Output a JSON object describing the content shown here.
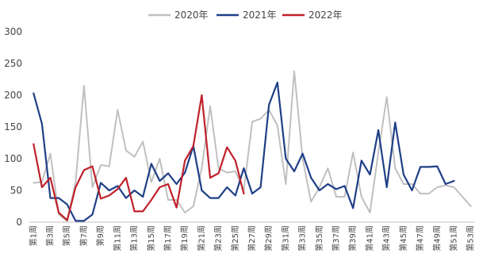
{
  "chart_data": {
    "type": "line",
    "categories": [
      "第1周",
      "第2周",
      "第3周",
      "第4周",
      "第5周",
      "第6周",
      "第7周",
      "第8周",
      "第9周",
      "第10周",
      "第11周",
      "第12周",
      "第13周",
      "第14周",
      "第15周",
      "第16周",
      "第17周",
      "第18周",
      "第19周",
      "第20周",
      "第21周",
      "第22周",
      "第23周",
      "第24周",
      "第25周",
      "第26周",
      "第27周",
      "第28周",
      "第29周",
      "第30周",
      "第31周",
      "第32周",
      "第33周",
      "第34周",
      "第35周",
      "第36周",
      "第37周",
      "第38周",
      "第39周",
      "第40周",
      "第41周",
      "第42周",
      "第43周",
      "第44周",
      "第45周",
      "第46周",
      "第47周",
      "第48周",
      "第49周",
      "第50周",
      "第51周",
      "第52周",
      "第53周"
    ],
    "tick_every": 2,
    "ylim": [
      0,
      300
    ],
    "yticks": [
      0,
      50,
      100,
      150,
      200,
      250,
      300
    ],
    "legend": "top-center",
    "grid": false,
    "series": [
      {
        "name": "2020年",
        "color": "#c0c0c0",
        "values": [
          62,
          63,
          108,
          12,
          2,
          63,
          215,
          55,
          90,
          88,
          177,
          113,
          103,
          127,
          63,
          100,
          35,
          35,
          15,
          25,
          85,
          183,
          85,
          78,
          80,
          50,
          158,
          163,
          177,
          152,
          60,
          238,
          100,
          32,
          55,
          85,
          40,
          40,
          110,
          40,
          15,
          110,
          197,
          85,
          60,
          60,
          45,
          45,
          55,
          58,
          55,
          40,
          25
        ]
      },
      {
        "name": "2021年",
        "color": "#1f3f87",
        "values": [
          203,
          155,
          38,
          38,
          28,
          2,
          2,
          12,
          62,
          50,
          57,
          38,
          50,
          40,
          92,
          65,
          77,
          60,
          78,
          120,
          50,
          38,
          38,
          55,
          42,
          85,
          45,
          55,
          185,
          220,
          100,
          80,
          108,
          70,
          50,
          60,
          52,
          57,
          22,
          97,
          75,
          145,
          55,
          157,
          75,
          50,
          87,
          87,
          88,
          60,
          65,
          null,
          null
        ]
      },
      {
        "name": "2022年",
        "color": "#c0202a",
        "values": [
          123,
          55,
          70,
          15,
          3,
          55,
          82,
          88,
          37,
          42,
          52,
          70,
          17,
          17,
          35,
          55,
          60,
          23,
          97,
          120,
          200,
          70,
          77,
          118,
          97,
          45,
          null,
          null,
          null,
          null,
          null,
          null,
          null,
          null,
          null,
          null,
          null,
          null,
          null,
          null,
          null,
          null,
          null,
          null,
          null,
          null,
          null,
          null,
          null,
          null,
          null,
          null,
          null
        ]
      }
    ]
  }
}
